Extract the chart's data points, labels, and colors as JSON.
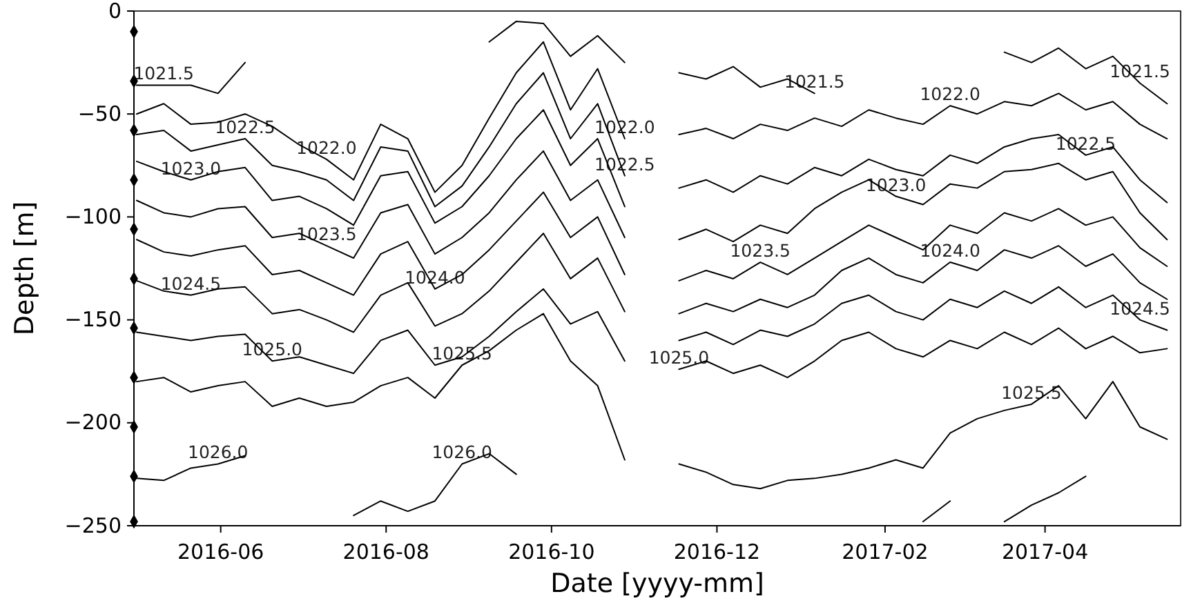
{
  "chart_data": {
    "type": "line",
    "xlabel": "Date [yyyy-mm]",
    "ylabel": "Depth [m]",
    "xlim": [
      "2016-04-30",
      "2017-05-21"
    ],
    "ylim": [
      -250,
      0
    ],
    "xticks": [
      {
        "value": "2016-06-01",
        "label": "2016-06"
      },
      {
        "value": "2016-08-01",
        "label": "2016-08"
      },
      {
        "value": "2016-10-01",
        "label": "2016-10"
      },
      {
        "value": "2016-12-01",
        "label": "2016-12"
      },
      {
        "value": "2017-02-01",
        "label": "2017-02"
      },
      {
        "value": "2017-04-01",
        "label": "2017-04"
      }
    ],
    "yticks": [
      {
        "value": -250,
        "label": "−250"
      },
      {
        "value": -200,
        "label": "−200"
      },
      {
        "value": -150,
        "label": "−150"
      },
      {
        "value": -100,
        "label": "−100"
      },
      {
        "value": -50,
        "label": "−50"
      },
      0
    ],
    "x": [
      "2016-05-01",
      "2016-05-11",
      "2016-05-21",
      "2016-05-31",
      "2016-06-10",
      "2016-06-20",
      "2016-06-30",
      "2016-07-10",
      "2016-07-20",
      "2016-07-30",
      "2016-08-09",
      "2016-08-19",
      "2016-08-29",
      "2016-09-08",
      "2016-09-18",
      "2016-09-28",
      "2016-10-08",
      "2016-10-18",
      "2016-10-28",
      "2016-11-07",
      "2016-11-17",
      "2016-11-27",
      "2016-12-07",
      "2016-12-17",
      "2016-12-27",
      "2017-01-06",
      "2017-01-16",
      "2017-01-26",
      "2017-02-05",
      "2017-02-15",
      "2017-02-25",
      "2017-03-07",
      "2017-03-17",
      "2017-03-27",
      "2017-04-06",
      "2017-04-16",
      "2017-04-26",
      "2017-05-06",
      "2017-05-16"
    ],
    "series": [
      {
        "color": "#000000",
        "values": [
          -36,
          -36,
          -36,
          -40,
          -25,
          null,
          null,
          null,
          null,
          null,
          null,
          null,
          null,
          -15,
          -5,
          -6,
          -22,
          -12,
          -25,
          null,
          -30,
          -33,
          -27,
          -37,
          -33,
          -40,
          null,
          null,
          null,
          null,
          null,
          null,
          -20,
          -25,
          -18,
          -28,
          -22,
          -35,
          -45
        ]
      },
      {
        "color": "#000000",
        "values": [
          -50,
          -45,
          -55,
          -54,
          -50,
          -56,
          -65,
          -72,
          -82,
          -55,
          -62,
          -88,
          -75,
          -52,
          -30,
          -15,
          -48,
          -28,
          -62,
          null,
          -60,
          -57,
          -62,
          -55,
          -58,
          -52,
          -56,
          -48,
          -52,
          -55,
          -46,
          -50,
          -44,
          -46,
          -40,
          -48,
          -44,
          -55,
          -62
        ]
      },
      {
        "color": "#000000",
        "values": [
          -60,
          -58,
          -68,
          -65,
          -62,
          -75,
          -78,
          -82,
          -92,
          -66,
          -68,
          -95,
          -85,
          -66,
          -45,
          -30,
          -62,
          -45,
          -80,
          null,
          -86,
          -82,
          -88,
          -80,
          -84,
          -76,
          -80,
          -72,
          -77,
          -80,
          -70,
          -74,
          -66,
          -62,
          -60,
          -70,
          -66,
          -82,
          -93
        ]
      },
      {
        "color": "#000000",
        "values": [
          -73,
          -78,
          -82,
          -78,
          -76,
          -92,
          -90,
          -96,
          -104,
          -80,
          -78,
          -103,
          -95,
          -80,
          -62,
          -48,
          -75,
          -62,
          -95,
          null,
          -111,
          -106,
          -112,
          -104,
          -108,
          -96,
          -88,
          -82,
          -90,
          -94,
          -84,
          -86,
          -78,
          -77,
          -74,
          -82,
          -78,
          -98,
          -111
        ]
      },
      {
        "color": "#000000",
        "values": [
          -92,
          -98,
          -100,
          -96,
          -95,
          -110,
          -108,
          -114,
          -120,
          -98,
          -94,
          -118,
          -110,
          -98,
          -82,
          -68,
          -92,
          -82,
          -110,
          null,
          -131,
          -126,
          -130,
          -122,
          -128,
          -120,
          -112,
          -104,
          -110,
          -116,
          -104,
          -108,
          -98,
          -102,
          -96,
          -104,
          -100,
          -115,
          -124
        ]
      },
      {
        "color": "#000000",
        "values": [
          -111,
          -117,
          -119,
          -116,
          -114,
          -128,
          -126,
          -132,
          -138,
          -118,
          -112,
          -135,
          -128,
          -116,
          -102,
          -88,
          -110,
          -100,
          -128,
          null,
          -147,
          -142,
          -146,
          -140,
          -144,
          -138,
          -126,
          -120,
          -128,
          -132,
          -122,
          -126,
          -116,
          -120,
          -114,
          -124,
          -118,
          -132,
          -140
        ]
      },
      {
        "color": "#000000",
        "values": [
          -131,
          -136,
          -138,
          -135,
          -134,
          -147,
          -145,
          -150,
          -156,
          -138,
          -132,
          -153,
          -147,
          -136,
          -122,
          -108,
          -130,
          -120,
          -146,
          null,
          -160,
          -156,
          -162,
          -155,
          -158,
          -152,
          -142,
          -138,
          -146,
          -150,
          -140,
          -144,
          -136,
          -142,
          -134,
          -144,
          -138,
          -150,
          -155
        ]
      },
      {
        "color": "#000000",
        "values": [
          -156,
          -158,
          -160,
          -158,
          -157,
          -170,
          -168,
          -172,
          -176,
          -160,
          -155,
          -172,
          -168,
          -158,
          -146,
          -135,
          -152,
          -146,
          -170,
          null,
          -174,
          -170,
          -176,
          -172,
          -178,
          -170,
          -160,
          -156,
          -164,
          -168,
          -160,
          -164,
          -156,
          -162,
          -154,
          -164,
          -158,
          -166,
          -164
        ]
      },
      {
        "color": "#000000",
        "values": [
          -180,
          -178,
          -185,
          -182,
          -180,
          -192,
          -188,
          -192,
          -190,
          -182,
          -178,
          -188,
          -172,
          -165,
          -155,
          -147,
          -170,
          -182,
          -218,
          null,
          -220,
          -224,
          -230,
          -232,
          -228,
          -227,
          -225,
          -222,
          -218,
          -222,
          -205,
          -198,
          -194,
          -191,
          -182,
          -198,
          -180,
          -202,
          -208
        ]
      },
      {
        "color": "#000000",
        "values": [
          -227,
          -228,
          -222,
          -220,
          -216,
          null,
          null,
          null,
          -245,
          -238,
          -243,
          -238,
          -220,
          -215,
          -225,
          null,
          null,
          null,
          null,
          null,
          null,
          null,
          null,
          null,
          null,
          null,
          null,
          null,
          null,
          -248,
          -238,
          null,
          -248,
          -240,
          -234,
          -226,
          null,
          null,
          null
        ]
      },
      {
        "type": "scatter",
        "marker": "diamond",
        "color": "#000000",
        "x": [
          "2016-04-30",
          "2016-04-30",
          "2016-04-30",
          "2016-04-30",
          "2016-04-30",
          "2016-04-30",
          "2016-04-30",
          "2016-04-30",
          "2016-04-30",
          "2016-04-30",
          "2016-04-30"
        ],
        "values": [
          -10,
          -34,
          -58,
          -82,
          -106,
          -130,
          -154,
          -178,
          -202,
          -226,
          -248
        ]
      }
    ],
    "annotations": [
      {
        "text": "1021.5",
        "x": "2016-05-11",
        "y": -36
      },
      {
        "text": "1022.5",
        "x": "2016-06-10",
        "y": -62
      },
      {
        "text": "1022.0",
        "x": "2016-07-10",
        "y": -72
      },
      {
        "text": "1023.0",
        "x": "2016-05-21",
        "y": -82
      },
      {
        "text": "1023.5",
        "x": "2016-07-10",
        "y": -114
      },
      {
        "text": "1024.5",
        "x": "2016-05-21",
        "y": -138
      },
      {
        "text": "1025.0",
        "x": "2016-06-20",
        "y": -170
      },
      {
        "text": "1024.0",
        "x": "2016-08-19",
        "y": -135
      },
      {
        "text": "1025.5",
        "x": "2016-08-29",
        "y": -172
      },
      {
        "text": "1026.0",
        "x": "2016-08-29",
        "y": -220
      },
      {
        "text": "1026.0",
        "x": "2016-05-31",
        "y": -220
      },
      {
        "text": "1022.0",
        "x": "2016-10-28",
        "y": -62
      },
      {
        "text": "1022.5",
        "x": "2016-10-28",
        "y": -80
      },
      {
        "text": "1025.0",
        "x": "2016-11-17",
        "y": -174
      },
      {
        "text": "1021.5",
        "x": "2017-01-06",
        "y": -40
      },
      {
        "text": "1023.5",
        "x": "2016-12-17",
        "y": -122
      },
      {
        "text": "1023.0",
        "x": "2017-02-05",
        "y": -90
      },
      {
        "text": "1022.0",
        "x": "2017-02-25",
        "y": -46
      },
      {
        "text": "1024.0",
        "x": "2017-02-25",
        "y": -122
      },
      {
        "text": "1022.5",
        "x": "2017-04-16",
        "y": -70
      },
      {
        "text": "1025.5",
        "x": "2017-03-27",
        "y": -191
      },
      {
        "text": "1021.5",
        "x": "2017-05-06",
        "y": -35
      },
      {
        "text": "1024.5",
        "x": "2017-05-06",
        "y": -150
      }
    ]
  }
}
